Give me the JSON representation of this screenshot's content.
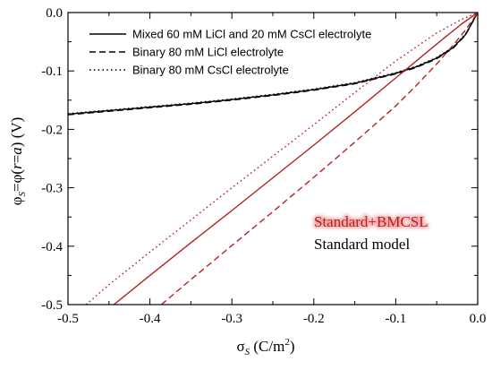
{
  "chart_data": {
    "type": "line",
    "xlabel_main": "σ",
    "xlabel_sub": "S",
    "xlabel_unit": " (C/m",
    "xlabel_sup": "2",
    "xlabel_end": ")",
    "ylabel_main": "φ",
    "ylabel_sub": "S",
    "ylabel_mid": "=φ(",
    "ylabel_r": "r",
    "ylabel_eq": "=",
    "ylabel_a": "a",
    "ylabel_end": ") (V)",
    "xlim": [
      -0.5,
      0.0
    ],
    "ylim": [
      -0.5,
      0.0
    ],
    "xticks": [
      {
        "value": -0.5,
        "label": "-0.5"
      },
      {
        "value": -0.4,
        "label": "-0.4"
      },
      {
        "value": -0.3,
        "label": "-0.3"
      },
      {
        "value": -0.2,
        "label": "-0.2"
      },
      {
        "value": -0.1,
        "label": "-0.1"
      },
      {
        "value": 0.0,
        "label": "0.0"
      }
    ],
    "yticks": [
      {
        "value": 0.0,
        "label": "0.0"
      },
      {
        "value": -0.1,
        "label": "-0.1"
      },
      {
        "value": -0.2,
        "label": "-0.2"
      },
      {
        "value": -0.3,
        "label": "-0.3"
      },
      {
        "value": -0.4,
        "label": "-0.4"
      },
      {
        "value": -0.5,
        "label": "-0.5"
      }
    ],
    "legend_position": "top-left",
    "legend": [
      {
        "label": "Mixed 60 mM LiCl and 20 mM CsCl electrolyte",
        "dash": "solid"
      },
      {
        "label": "Binary 80 mM LiCl electrolyte",
        "dash": "dashed"
      },
      {
        "label": "Binary 80 mM CsCl electrolyte",
        "dash": "dotted"
      }
    ],
    "annotations": [
      {
        "text": "Standard+BMCSL",
        "color": "#b22222",
        "glow": "#f4a0a0"
      },
      {
        "text": "Standard model",
        "color": "#000000",
        "glow": ""
      }
    ],
    "series": [
      {
        "model": "standard",
        "dash": "solid",
        "color": "#000000",
        "x": [
          -0.5,
          -0.45,
          -0.4,
          -0.35,
          -0.3,
          -0.25,
          -0.2,
          -0.15,
          -0.1,
          -0.075,
          -0.05,
          -0.03,
          -0.015,
          0.0
        ],
        "y": [
          -0.174,
          -0.168,
          -0.162,
          -0.156,
          -0.149,
          -0.141,
          -0.132,
          -0.121,
          -0.104,
          -0.093,
          -0.078,
          -0.06,
          -0.038,
          0.0
        ]
      },
      {
        "model": "standard",
        "dash": "dashed",
        "color": "#000000",
        "x": [
          -0.5,
          -0.45,
          -0.4,
          -0.35,
          -0.3,
          -0.25,
          -0.2,
          -0.15,
          -0.1,
          -0.075,
          -0.05,
          -0.03,
          -0.015,
          0.0
        ],
        "y": [
          -0.175,
          -0.169,
          -0.163,
          -0.157,
          -0.15,
          -0.142,
          -0.133,
          -0.122,
          -0.105,
          -0.094,
          -0.079,
          -0.061,
          -0.039,
          0.0
        ]
      },
      {
        "model": "standard",
        "dash": "dotted",
        "color": "#000000",
        "x": [
          -0.5,
          -0.45,
          -0.4,
          -0.35,
          -0.3,
          -0.25,
          -0.2,
          -0.15,
          -0.1,
          -0.075,
          -0.05,
          -0.03,
          -0.015,
          0.0
        ],
        "y": [
          -0.173,
          -0.167,
          -0.161,
          -0.155,
          -0.148,
          -0.14,
          -0.131,
          -0.12,
          -0.103,
          -0.092,
          -0.077,
          -0.059,
          -0.037,
          0.0
        ]
      },
      {
        "model": "bmcsl",
        "dash": "solid",
        "color": "#b22222",
        "x": [
          -0.444,
          -0.4,
          -0.35,
          -0.3,
          -0.25,
          -0.2,
          -0.15,
          -0.1,
          -0.05,
          -0.02,
          0.0
        ],
        "y": [
          -0.5,
          -0.45,
          -0.394,
          -0.339,
          -0.283,
          -0.227,
          -0.17,
          -0.112,
          -0.054,
          -0.02,
          0.0
        ]
      },
      {
        "model": "bmcsl",
        "dash": "dashed",
        "color": "#b22222",
        "x": [
          -0.386,
          -0.35,
          -0.3,
          -0.25,
          -0.2,
          -0.15,
          -0.1,
          -0.075,
          -0.05,
          -0.03,
          -0.015,
          0.0
        ],
        "y": [
          -0.5,
          -0.457,
          -0.399,
          -0.341,
          -0.282,
          -0.222,
          -0.16,
          -0.125,
          -0.088,
          -0.056,
          -0.03,
          0.0
        ]
      },
      {
        "model": "bmcsl",
        "dash": "dotted",
        "color": "#b22222",
        "x": [
          -0.478,
          -0.45,
          -0.4,
          -0.35,
          -0.3,
          -0.25,
          -0.2,
          -0.15,
          -0.1,
          -0.05,
          -0.02,
          0.0
        ],
        "y": [
          -0.5,
          -0.466,
          -0.41,
          -0.355,
          -0.3,
          -0.246,
          -0.192,
          -0.137,
          -0.083,
          -0.035,
          -0.012,
          0.0
        ]
      }
    ]
  }
}
